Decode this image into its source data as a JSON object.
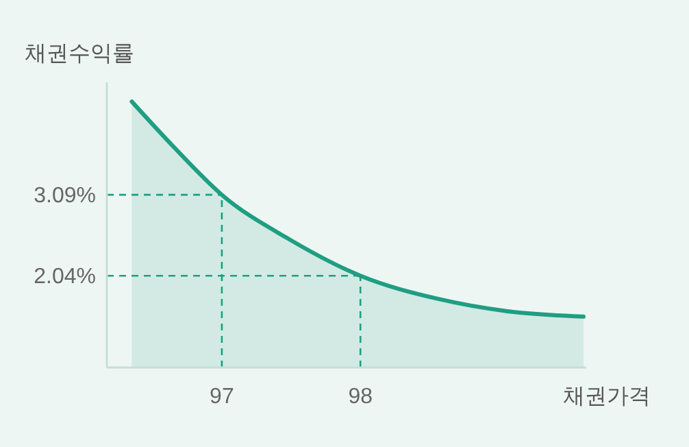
{
  "chart_data": {
    "type": "area",
    "ylabel": "채권수익률",
    "xlabel": "채권가격",
    "x": [
      96.35,
      96.68,
      97,
      97.48,
      98,
      98.56,
      99.06,
      99.61
    ],
    "series": [
      {
        "color": "#1f9e82",
        "values": [
          4.3,
          3.66,
          3.09,
          2.52,
          2.04,
          1.74,
          1.58,
          1.51
        ]
      }
    ],
    "xlim": [
      96.17,
      99.63
    ],
    "ylim": [
      0.85,
      4.55
    ],
    "xticks": [
      97,
      98
    ],
    "yticks": [
      {
        "value": 2.04,
        "label": "2.04%"
      },
      {
        "value": 3.09,
        "label": "3.09%"
      }
    ],
    "ref_lines": [
      {
        "axis": "x",
        "value": 97,
        "line_style": "dashed"
      },
      {
        "axis": "x",
        "value": 98,
        "line_style": "dashed"
      },
      {
        "axis": "y",
        "value": 3.09,
        "line_style": "dashed"
      },
      {
        "axis": "y",
        "value": 2.04,
        "line_style": "dashed"
      }
    ],
    "grid": false
  }
}
